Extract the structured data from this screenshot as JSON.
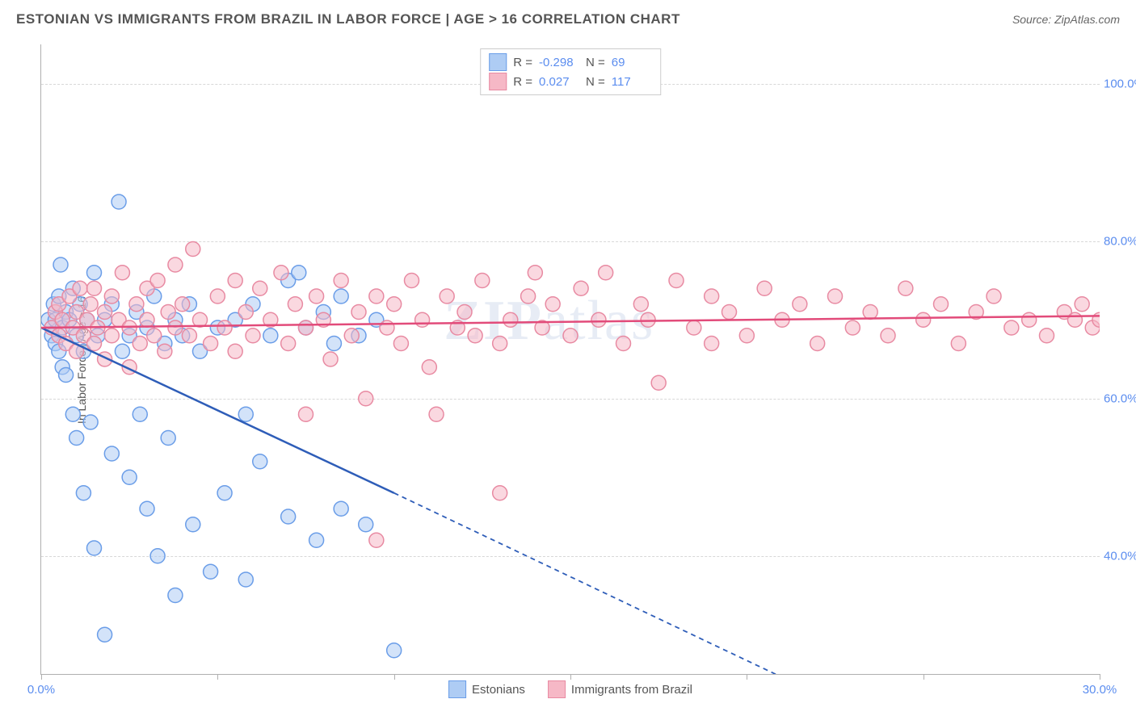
{
  "title": "ESTONIAN VS IMMIGRANTS FROM BRAZIL IN LABOR FORCE | AGE > 16 CORRELATION CHART",
  "source": "Source: ZipAtlas.com",
  "y_axis_title": "In Labor Force | Age > 16",
  "watermark_zip": "ZIP",
  "watermark_atlas": "atlas",
  "chart": {
    "type": "scatter",
    "background_color": "#ffffff",
    "grid_color": "#d8d8d8",
    "axis_color": "#b0b0b0",
    "tick_label_color": "#5b8def",
    "xlim": [
      0,
      30
    ],
    "ylim": [
      25,
      105
    ],
    "xticks": [
      0,
      5,
      10,
      15,
      20,
      25,
      30
    ],
    "xtick_labels": [
      "0.0%",
      "",
      "",
      "",
      "",
      "",
      "30.0%"
    ],
    "yticks": [
      40,
      60,
      80,
      100
    ],
    "ytick_labels": [
      "40.0%",
      "60.0%",
      "80.0%",
      "100.0%"
    ],
    "marker_radius": 9,
    "marker_stroke_width": 1.5,
    "trend_line_width": 2.5,
    "series": [
      {
        "name": "Estonians",
        "fill": "#aeccf4",
        "fill_opacity": 0.55,
        "stroke": "#6a9de8",
        "r_value": "-0.298",
        "n_value": "69",
        "trend": {
          "x1": 0,
          "y1": 69,
          "x2": 10,
          "y2": 48,
          "dash_x2": 25.5,
          "dash_y2": 15,
          "color": "#2e5db8"
        },
        "points": [
          [
            0.2,
            70
          ],
          [
            0.3,
            68
          ],
          [
            0.35,
            72
          ],
          [
            0.4,
            67
          ],
          [
            0.4,
            70
          ],
          [
            0.5,
            66
          ],
          [
            0.5,
            73
          ],
          [
            0.55,
            77
          ],
          [
            0.6,
            69
          ],
          [
            0.6,
            64
          ],
          [
            0.7,
            71
          ],
          [
            0.7,
            63
          ],
          [
            0.8,
            70
          ],
          [
            0.9,
            74
          ],
          [
            0.9,
            58
          ],
          [
            1.0,
            68
          ],
          [
            1.0,
            55
          ],
          [
            1.1,
            72
          ],
          [
            1.2,
            66
          ],
          [
            1.2,
            48
          ],
          [
            1.3,
            70
          ],
          [
            1.4,
            57
          ],
          [
            1.5,
            76
          ],
          [
            1.5,
            41
          ],
          [
            1.6,
            68
          ],
          [
            1.8,
            70
          ],
          [
            1.8,
            30
          ],
          [
            2.0,
            72
          ],
          [
            2.0,
            53
          ],
          [
            2.2,
            85
          ],
          [
            2.3,
            66
          ],
          [
            2.5,
            68
          ],
          [
            2.5,
            50
          ],
          [
            2.7,
            71
          ],
          [
            2.8,
            58
          ],
          [
            3.0,
            69
          ],
          [
            3.0,
            46
          ],
          [
            3.2,
            73
          ],
          [
            3.3,
            40
          ],
          [
            3.5,
            67
          ],
          [
            3.6,
            55
          ],
          [
            3.8,
            70
          ],
          [
            3.8,
            35
          ],
          [
            4.0,
            68
          ],
          [
            4.2,
            72
          ],
          [
            4.3,
            44
          ],
          [
            4.5,
            66
          ],
          [
            4.8,
            38
          ],
          [
            5.0,
            69
          ],
          [
            5.2,
            48
          ],
          [
            5.5,
            70
          ],
          [
            5.8,
            58
          ],
          [
            5.8,
            37
          ],
          [
            6.0,
            72
          ],
          [
            6.2,
            52
          ],
          [
            6.5,
            68
          ],
          [
            7.0,
            75
          ],
          [
            7.0,
            45
          ],
          [
            7.3,
            76
          ],
          [
            7.5,
            69
          ],
          [
            7.8,
            42
          ],
          [
            8.0,
            71
          ],
          [
            8.3,
            67
          ],
          [
            8.5,
            46
          ],
          [
            8.5,
            73
          ],
          [
            9.0,
            68
          ],
          [
            9.2,
            44
          ],
          [
            9.5,
            70
          ],
          [
            10.0,
            28
          ]
        ]
      },
      {
        "name": "Immigrants from Brazil",
        "fill": "#f6b8c6",
        "fill_opacity": 0.55,
        "stroke": "#e88aa2",
        "r_value": "0.027",
        "n_value": "117",
        "trend": {
          "x1": 0,
          "y1": 69,
          "x2": 30,
          "y2": 70.5,
          "color": "#e24b7a"
        },
        "points": [
          [
            0.3,
            69
          ],
          [
            0.4,
            71
          ],
          [
            0.5,
            68
          ],
          [
            0.5,
            72
          ],
          [
            0.6,
            70
          ],
          [
            0.7,
            67
          ],
          [
            0.8,
            73
          ],
          [
            0.9,
            69
          ],
          [
            1.0,
            71
          ],
          [
            1.0,
            66
          ],
          [
            1.1,
            74
          ],
          [
            1.2,
            68
          ],
          [
            1.3,
            70
          ],
          [
            1.4,
            72
          ],
          [
            1.5,
            67
          ],
          [
            1.5,
            74
          ],
          [
            1.6,
            69
          ],
          [
            1.8,
            71
          ],
          [
            1.8,
            65
          ],
          [
            2.0,
            73
          ],
          [
            2.0,
            68
          ],
          [
            2.2,
            70
          ],
          [
            2.3,
            76
          ],
          [
            2.5,
            69
          ],
          [
            2.5,
            64
          ],
          [
            2.7,
            72
          ],
          [
            2.8,
            67
          ],
          [
            3.0,
            74
          ],
          [
            3.0,
            70
          ],
          [
            3.2,
            68
          ],
          [
            3.3,
            75
          ],
          [
            3.5,
            66
          ],
          [
            3.6,
            71
          ],
          [
            3.8,
            69
          ],
          [
            3.8,
            77
          ],
          [
            4.0,
            72
          ],
          [
            4.2,
            68
          ],
          [
            4.3,
            79
          ],
          [
            4.5,
            70
          ],
          [
            4.8,
            67
          ],
          [
            5.0,
            73
          ],
          [
            5.2,
            69
          ],
          [
            5.5,
            75
          ],
          [
            5.5,
            66
          ],
          [
            5.8,
            71
          ],
          [
            6.0,
            68
          ],
          [
            6.2,
            74
          ],
          [
            6.5,
            70
          ],
          [
            6.8,
            76
          ],
          [
            7.0,
            67
          ],
          [
            7.2,
            72
          ],
          [
            7.5,
            69
          ],
          [
            7.5,
            58
          ],
          [
            7.8,
            73
          ],
          [
            8.0,
            70
          ],
          [
            8.2,
            65
          ],
          [
            8.5,
            75
          ],
          [
            8.8,
            68
          ],
          [
            9.0,
            71
          ],
          [
            9.2,
            60
          ],
          [
            9.5,
            73
          ],
          [
            9.5,
            42
          ],
          [
            9.8,
            69
          ],
          [
            10.0,
            72
          ],
          [
            10.2,
            67
          ],
          [
            10.5,
            75
          ],
          [
            10.8,
            70
          ],
          [
            11.0,
            64
          ],
          [
            11.2,
            58
          ],
          [
            11.5,
            73
          ],
          [
            11.8,
            69
          ],
          [
            12.0,
            71
          ],
          [
            12.3,
            68
          ],
          [
            12.5,
            75
          ],
          [
            13.0,
            67
          ],
          [
            13.0,
            48
          ],
          [
            13.3,
            70
          ],
          [
            13.8,
            73
          ],
          [
            14.0,
            76
          ],
          [
            14.2,
            69
          ],
          [
            14.5,
            72
          ],
          [
            15.0,
            68
          ],
          [
            15.3,
            74
          ],
          [
            15.8,
            70
          ],
          [
            16.0,
            76
          ],
          [
            16.5,
            67
          ],
          [
            17.0,
            72
          ],
          [
            17.2,
            70
          ],
          [
            17.5,
            62
          ],
          [
            18.0,
            75
          ],
          [
            18.5,
            69
          ],
          [
            19.0,
            73
          ],
          [
            19.0,
            67
          ],
          [
            19.5,
            71
          ],
          [
            20.0,
            68
          ],
          [
            20.5,
            74
          ],
          [
            21.0,
            70
          ],
          [
            21.5,
            72
          ],
          [
            22.0,
            67
          ],
          [
            22.5,
            73
          ],
          [
            23.0,
            69
          ],
          [
            23.5,
            71
          ],
          [
            24.0,
            68
          ],
          [
            24.5,
            74
          ],
          [
            25.0,
            70
          ],
          [
            25.5,
            72
          ],
          [
            26.0,
            67
          ],
          [
            26.5,
            71
          ],
          [
            27.0,
            73
          ],
          [
            27.5,
            69
          ],
          [
            28.0,
            70
          ],
          [
            28.5,
            68
          ],
          [
            29.0,
            71
          ],
          [
            29.3,
            70
          ],
          [
            29.5,
            72
          ],
          [
            29.8,
            69
          ],
          [
            30.0,
            70
          ]
        ]
      }
    ]
  },
  "stats_legend": {
    "r_label": "R =",
    "n_label": "N ="
  },
  "bottom_legend": {
    "items": [
      "Estonians",
      "Immigrants from Brazil"
    ]
  }
}
